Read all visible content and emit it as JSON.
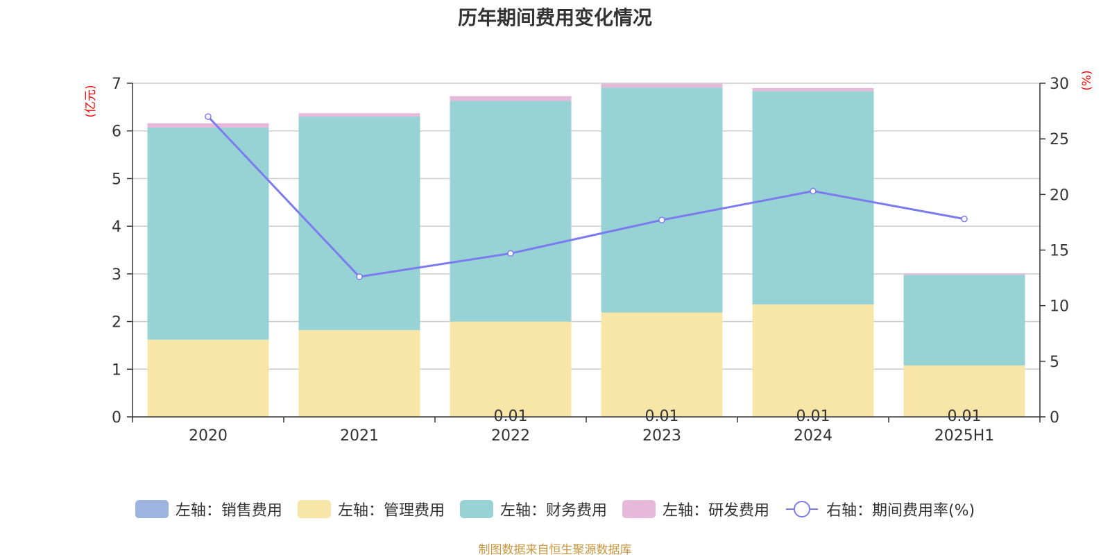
{
  "source_note": "制图数据来自恒生聚源数据库",
  "colors": {
    "sales": "#9db4e0",
    "admin": "#f7e6a8",
    "finance": "#97d3d4",
    "rd": "#e6b8da",
    "rate_line": "#7b7bef",
    "axis_label_red": "#ff0000",
    "source_note": "#c8963e",
    "grid": "#cccccc",
    "axis_line": "#333333",
    "text": "#333333"
  },
  "chart_data": {
    "type": "bar",
    "title": "历年期间费用变化情况",
    "categories": [
      "2020",
      "2021",
      "2022",
      "2023",
      "2024",
      "2025H1"
    ],
    "ylabel_left": "(亿元)",
    "ylabel_right": "(%)",
    "ylim_left": [
      0,
      7
    ],
    "yticks_left": [
      "0",
      "1",
      "2",
      "3",
      "4",
      "5",
      "6",
      "7"
    ],
    "ylim_right": [
      0,
      30
    ],
    "yticks_right": [
      "0",
      "5",
      "10",
      "15",
      "20",
      "25",
      "30"
    ],
    "stacked": true,
    "series": [
      {
        "name": "左轴：销售费用",
        "key": "sales",
        "axis": "left",
        "values": [
          0.0,
          0.0,
          0.01,
          0.01,
          0.01,
          0.01
        ]
      },
      {
        "name": "左轴：管理费用",
        "key": "admin",
        "axis": "left",
        "values": [
          1.62,
          1.82,
          1.99,
          2.18,
          2.35,
          1.07
        ]
      },
      {
        "name": "左轴：财务费用",
        "key": "finance",
        "axis": "left",
        "values": [
          4.45,
          4.48,
          4.63,
          4.72,
          4.47,
          1.9
        ]
      },
      {
        "name": "左轴：研发费用",
        "key": "rd",
        "axis": "left",
        "values": [
          0.09,
          0.07,
          0.1,
          0.08,
          0.07,
          0.03
        ]
      }
    ],
    "line_series": {
      "name": "右轴：期间费用率(%)",
      "key": "rate_line",
      "axis": "right",
      "values": [
        27.0,
        12.6,
        14.7,
        17.7,
        20.3,
        17.8
      ]
    },
    "data_labels": [
      "0.01",
      "0.01",
      "0.01",
      "0.01"
    ],
    "data_label_categories": [
      "2022",
      "2023",
      "2024",
      "2025H1"
    ]
  }
}
